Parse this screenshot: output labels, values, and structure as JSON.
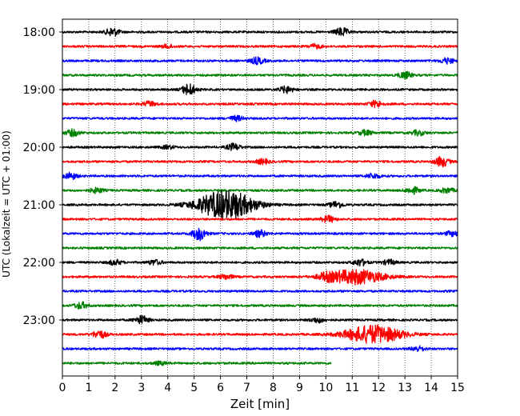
{
  "chart_data": {
    "type": "line",
    "title": "",
    "xlabel": "Zeit  [min]",
    "ylabel": "UTC (Lokalzeit = UTC + 01:00)",
    "xlim": [
      0,
      15
    ],
    "x_ticks": [
      "0",
      "1",
      "2",
      "3",
      "4",
      "5",
      "6",
      "7",
      "8",
      "9",
      "10",
      "11",
      "12",
      "13",
      "14",
      "15"
    ],
    "y_ticks": [
      "18:00",
      "19:00",
      "20:00",
      "21:00",
      "22:00",
      "23:00"
    ],
    "grid": "vertical dotted",
    "legend": "none",
    "colors": [
      "#000000",
      "#ff0000",
      "#0000ff",
      "#008000"
    ],
    "trace_interval_min": 15,
    "series": [
      {
        "start": "18:00",
        "color": "#000000",
        "end_min": 15,
        "events": [
          [
            1.9,
            5
          ],
          [
            10.6,
            5
          ]
        ]
      },
      {
        "start": "18:15",
        "color": "#ff0000",
        "end_min": 15,
        "events": [
          [
            4.0,
            2
          ],
          [
            9.6,
            2.5
          ]
        ]
      },
      {
        "start": "18:30",
        "color": "#0000ff",
        "end_min": 15,
        "events": [
          [
            7.4,
            4
          ],
          [
            14.6,
            3.5
          ]
        ]
      },
      {
        "start": "18:45",
        "color": "#008000",
        "end_min": 15,
        "events": [
          [
            13.0,
            4
          ]
        ]
      },
      {
        "start": "19:00",
        "color": "#000000",
        "end_min": 15,
        "events": [
          [
            4.8,
            7
          ],
          [
            8.5,
            4
          ]
        ]
      },
      {
        "start": "19:15",
        "color": "#ff0000",
        "end_min": 15,
        "events": [
          [
            3.3,
            3
          ],
          [
            11.9,
            4
          ]
        ]
      },
      {
        "start": "19:30",
        "color": "#0000ff",
        "end_min": 15,
        "events": [
          [
            6.6,
            3
          ]
        ]
      },
      {
        "start": "19:45",
        "color": "#008000",
        "end_min": 15,
        "events": [
          [
            0.4,
            4
          ],
          [
            11.5,
            3
          ],
          [
            13.5,
            3
          ]
        ]
      },
      {
        "start": "20:00",
        "color": "#000000",
        "end_min": 15,
        "events": [
          [
            6.5,
            4
          ],
          [
            4.0,
            2
          ]
        ]
      },
      {
        "start": "20:15",
        "color": "#ff0000",
        "end_min": 15,
        "events": [
          [
            7.6,
            3
          ],
          [
            14.4,
            6
          ]
        ]
      },
      {
        "start": "20:30",
        "color": "#0000ff",
        "end_min": 15,
        "events": [
          [
            0.3,
            4
          ],
          [
            11.8,
            3
          ]
        ]
      },
      {
        "start": "20:45",
        "color": "#008000",
        "end_min": 15,
        "events": [
          [
            1.3,
            3
          ],
          [
            13.3,
            4
          ],
          [
            14.6,
            3
          ]
        ]
      },
      {
        "start": "21:00",
        "color": "#000000",
        "end_min": 15,
        "events": [
          [
            6.2,
            18
          ],
          [
            10.4,
            4
          ]
        ]
      },
      {
        "start": "21:15",
        "color": "#ff0000",
        "end_min": 15,
        "events": [
          [
            10.1,
            4
          ]
        ]
      },
      {
        "start": "21:30",
        "color": "#0000ff",
        "end_min": 15,
        "events": [
          [
            5.2,
            8
          ],
          [
            7.5,
            4
          ],
          [
            14.8,
            3
          ]
        ]
      },
      {
        "start": "21:45",
        "color": "#008000",
        "end_min": 15,
        "events": []
      },
      {
        "start": "22:00",
        "color": "#000000",
        "end_min": 15,
        "events": [
          [
            2.0,
            3
          ],
          [
            3.5,
            3
          ],
          [
            11.3,
            4
          ],
          [
            12.4,
            3
          ]
        ]
      },
      {
        "start": "22:15",
        "color": "#ff0000",
        "end_min": 15,
        "events": [
          [
            11.1,
            9
          ],
          [
            10.0,
            3
          ],
          [
            6.2,
            3
          ]
        ]
      },
      {
        "start": "22:30",
        "color": "#0000ff",
        "end_min": 15,
        "events": []
      },
      {
        "start": "22:45",
        "color": "#008000",
        "end_min": 15,
        "events": [
          [
            0.7,
            4
          ]
        ]
      },
      {
        "start": "23:00",
        "color": "#000000",
        "end_min": 15,
        "events": [
          [
            3.0,
            5
          ],
          [
            9.7,
            3
          ]
        ]
      },
      {
        "start": "23:15",
        "color": "#ff0000",
        "end_min": 15,
        "events": [
          [
            1.4,
            5
          ],
          [
            11.8,
            11
          ]
        ]
      },
      {
        "start": "23:30",
        "color": "#0000ff",
        "end_min": 15,
        "events": [
          [
            13.5,
            3
          ]
        ]
      },
      {
        "start": "23:45",
        "color": "#008000",
        "end_min": 10.2,
        "events": [
          [
            3.7,
            2
          ]
        ]
      }
    ]
  }
}
